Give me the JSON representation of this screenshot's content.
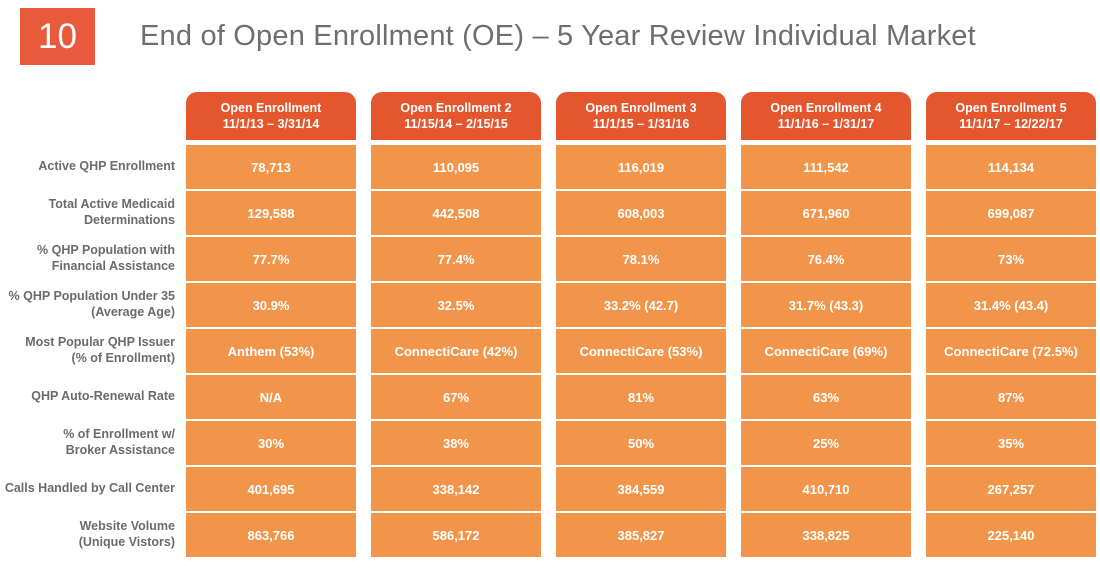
{
  "slide": {
    "number": "10",
    "title": "End of Open Enrollment (OE) – 5 Year Review Individual Market"
  },
  "colors": {
    "badge_orange": "#E75A3B",
    "column_header_orange": "#E4572E",
    "cell_orange": "#F0954A",
    "title_gray": "#6E6E6E",
    "label_gray": "#6B6B6B",
    "cell_text": "#FFFFFF"
  },
  "table": {
    "columns": [
      {
        "title": "Open Enrollment",
        "dates": "11/1/13 – 3/31/14"
      },
      {
        "title": "Open Enrollment 2",
        "dates": "11/15/14 – 2/15/15"
      },
      {
        "title": "Open Enrollment 3",
        "dates": "11/1/15 – 1/31/16"
      },
      {
        "title": "Open Enrollment 4",
        "dates": "11/1/16 – 1/31/17"
      },
      {
        "title": "Open Enrollment 5",
        "dates": "11/1/17 – 12/22/17"
      }
    ],
    "rows": [
      {
        "label": "Active QHP Enrollment",
        "values": [
          "78,713",
          "110,095",
          "116,019",
          "111,542",
          "114,134"
        ]
      },
      {
        "label": "Total Active Medicaid\nDeterminations",
        "values": [
          "129,588",
          "442,508",
          "608,003",
          "671,960",
          "699,087"
        ]
      },
      {
        "label": "% QHP Population with\nFinancial Assistance",
        "values": [
          "77.7%",
          "77.4%",
          "78.1%",
          "76.4%",
          "73%"
        ]
      },
      {
        "label": "% QHP Population Under 35\n(Average Age)",
        "values": [
          "30.9%",
          "32.5%",
          "33.2% (42.7)",
          "31.7% (43.3)",
          "31.4% (43.4)"
        ]
      },
      {
        "label": "Most Popular QHP Issuer\n(% of Enrollment)",
        "values": [
          "Anthem (53%)",
          "ConnectiCare (42%)",
          "ConnectiCare (53%)",
          "ConnectiCare (69%)",
          "ConnectiCare (72.5%)"
        ]
      },
      {
        "label": "QHP Auto-Renewal Rate",
        "values": [
          "N/A",
          "67%",
          "81%",
          "63%",
          "87%"
        ]
      },
      {
        "label": "% of Enrollment w/\nBroker Assistance",
        "values": [
          "30%",
          "38%",
          "50%",
          "25%",
          "35%"
        ]
      },
      {
        "label": "Calls Handled by Call Center",
        "values": [
          "401,695",
          "338,142",
          "384,559",
          "410,710",
          "267,257"
        ]
      },
      {
        "label": "Website Volume\n(Unique Vistors)",
        "values": [
          "863,766",
          "586,172",
          "385,827",
          "338,825",
          "225,140"
        ]
      }
    ]
  }
}
